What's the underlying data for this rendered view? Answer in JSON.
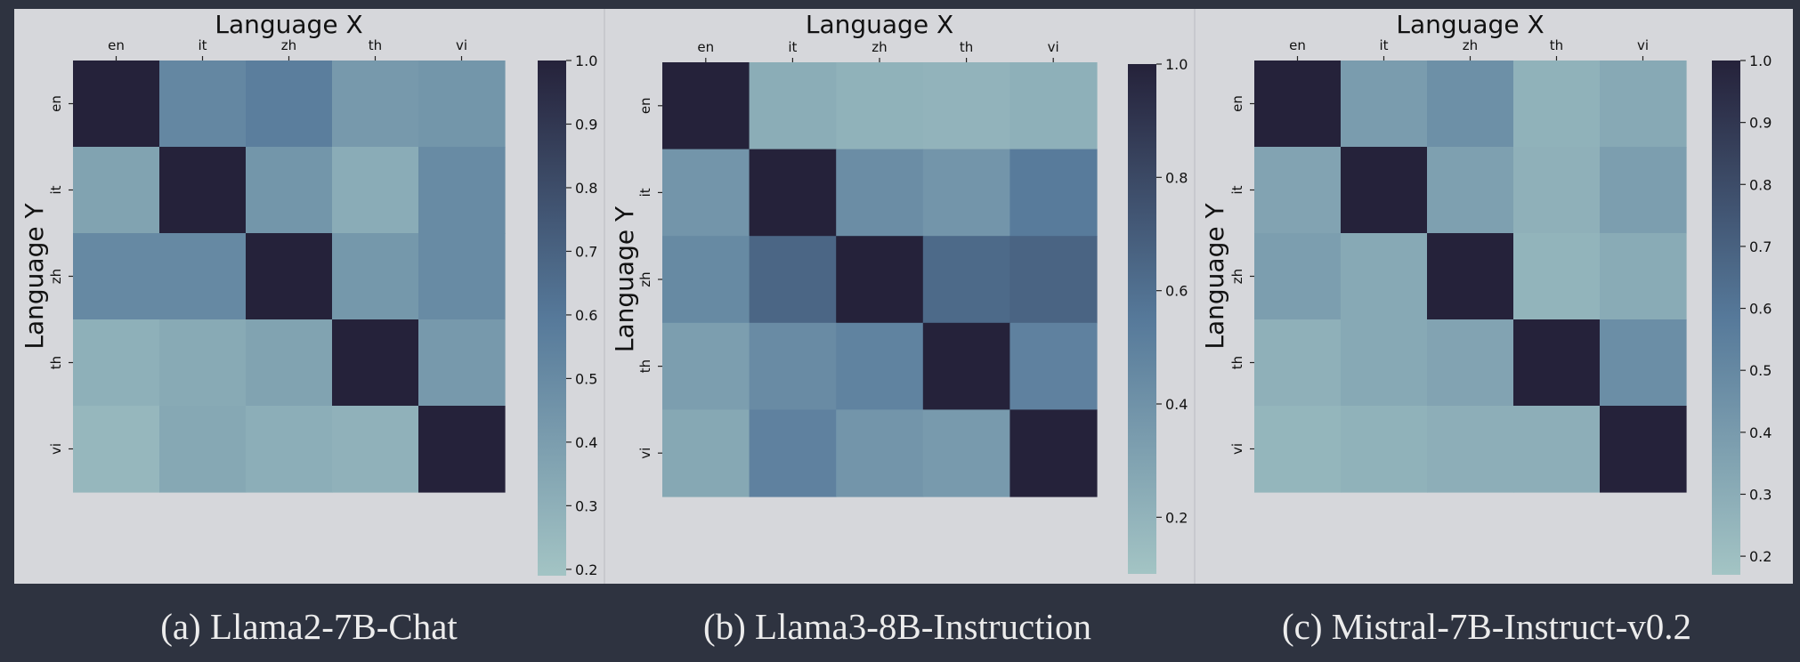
{
  "colors": {
    "background": "#2e3340",
    "panel": "#d6d7db",
    "cmap_low": "#a3c4c4",
    "cmap_mid": "#56799a",
    "cmap_high": "#25223a"
  },
  "chart_data": [
    {
      "type": "heatmap",
      "xlabel": "Language X",
      "ylabel": "Language Y",
      "x_labels": [
        "en",
        "it",
        "zh",
        "th",
        "vi"
      ],
      "y_labels": [
        "en",
        "it",
        "zh",
        "th",
        "vi"
      ],
      "values": [
        [
          1.0,
          0.52,
          0.57,
          0.42,
          0.44
        ],
        [
          0.37,
          1.0,
          0.44,
          0.32,
          0.5
        ],
        [
          0.51,
          0.51,
          1.0,
          0.43,
          0.5
        ],
        [
          0.3,
          0.33,
          0.37,
          1.0,
          0.42
        ],
        [
          0.26,
          0.34,
          0.31,
          0.29,
          1.0
        ]
      ],
      "colorbar": {
        "min": 0.19,
        "max": 1.0,
        "ticks": [
          "0.2",
          "0.3",
          "0.4",
          "0.5",
          "0.6",
          "0.7",
          "0.8",
          "0.9",
          "1.0"
        ],
        "tick_values": [
          0.2,
          0.3,
          0.4,
          0.5,
          0.6,
          0.7,
          0.8,
          0.9,
          1.0
        ]
      },
      "caption": "(a) Llama2-7B-Chat"
    },
    {
      "type": "heatmap",
      "xlabel": "Language X",
      "ylabel": "Language Y",
      "x_labels": [
        "en",
        "it",
        "zh",
        "th",
        "vi"
      ],
      "y_labels": [
        "en",
        "it",
        "zh",
        "th",
        "vi"
      ],
      "values": [
        [
          1.0,
          0.24,
          0.21,
          0.2,
          0.22
        ],
        [
          0.38,
          1.0,
          0.43,
          0.38,
          0.54
        ],
        [
          0.45,
          0.65,
          1.0,
          0.63,
          0.66
        ],
        [
          0.33,
          0.44,
          0.49,
          1.0,
          0.5
        ],
        [
          0.27,
          0.5,
          0.38,
          0.35,
          1.0
        ]
      ],
      "colorbar": {
        "min": 0.1,
        "max": 1.0,
        "ticks": [
          "0.2",
          "0.4",
          "0.6",
          "0.8",
          "1.0"
        ],
        "tick_values": [
          0.2,
          0.4,
          0.6,
          0.8,
          1.0
        ]
      },
      "caption": "(b) Llama3-8B-Instruction"
    },
    {
      "type": "heatmap",
      "xlabel": "Language X",
      "ylabel": "Language Y",
      "x_labels": [
        "en",
        "it",
        "zh",
        "th",
        "vi"
      ],
      "y_labels": [
        "en",
        "it",
        "zh",
        "th",
        "vi"
      ],
      "values": [
        [
          1.0,
          0.39,
          0.46,
          0.27,
          0.32
        ],
        [
          0.35,
          1.0,
          0.37,
          0.28,
          0.38
        ],
        [
          0.38,
          0.32,
          1.0,
          0.26,
          0.31
        ],
        [
          0.28,
          0.32,
          0.35,
          1.0,
          0.47
        ],
        [
          0.25,
          0.27,
          0.29,
          0.29,
          1.0
        ]
      ],
      "colorbar": {
        "min": 0.17,
        "max": 1.0,
        "ticks": [
          "0.2",
          "0.3",
          "0.4",
          "0.5",
          "0.6",
          "0.7",
          "0.8",
          "0.9",
          "1.0"
        ],
        "tick_values": [
          0.2,
          0.3,
          0.4,
          0.5,
          0.6,
          0.7,
          0.8,
          0.9,
          1.0
        ]
      },
      "caption": "(c) Mistral-7B-Instruct-v0.2"
    }
  ]
}
